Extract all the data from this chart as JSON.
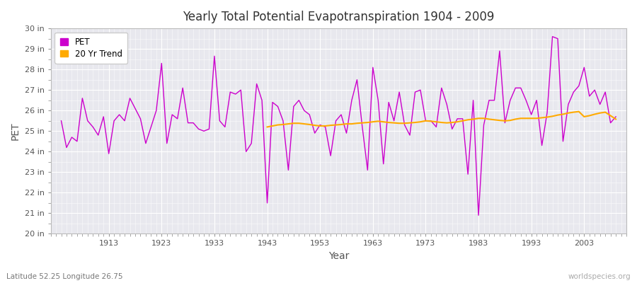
{
  "title": "Yearly Total Potential Evapotranspiration 1904 - 2009",
  "xlabel": "Year",
  "ylabel": "PET",
  "lat_lon_label": "Latitude 52.25 Longitude 26.75",
  "watermark": "worldspecies.org",
  "ylim": [
    20,
    30
  ],
  "ytick_values": [
    20,
    21,
    22,
    23,
    24,
    25,
    26,
    27,
    28,
    29,
    30
  ],
  "ytick_labels": [
    "20 in",
    "21 in",
    "22 in",
    "23 in",
    "24 in",
    "25 in",
    "26 in",
    "27 in",
    "28 in",
    "29 in",
    "30 in"
  ],
  "pet_color": "#cc00cc",
  "trend_color": "#ffaa00",
  "fig_bg_color": "#ffffff",
  "plot_bg_color": "#e8e8ee",
  "grid_color": "#ffffff",
  "text_color": "#555555",
  "pet_years": [
    1904,
    1905,
    1906,
    1907,
    1908,
    1909,
    1910,
    1911,
    1912,
    1913,
    1914,
    1915,
    1916,
    1917,
    1918,
    1919,
    1920,
    1921,
    1922,
    1923,
    1924,
    1925,
    1926,
    1927,
    1928,
    1929,
    1930,
    1931,
    1932,
    1933,
    1934,
    1935,
    1936,
    1937,
    1938,
    1939,
    1940,
    1941,
    1942,
    1943,
    1944,
    1945,
    1946,
    1947,
    1948,
    1949,
    1950,
    1951,
    1952,
    1953,
    1954,
    1955,
    1956,
    1957,
    1958,
    1959,
    1960,
    1961,
    1962,
    1963,
    1964,
    1965,
    1966,
    1967,
    1968,
    1969,
    1970,
    1971,
    1972,
    1973,
    1974,
    1975,
    1976,
    1977,
    1978,
    1979,
    1980,
    1981,
    1982,
    1983,
    1984,
    1985,
    1986,
    1987,
    1988,
    1989,
    1990,
    1991,
    1992,
    1993,
    1994,
    1995,
    1996,
    1997,
    1998,
    1999,
    2000,
    2001,
    2002,
    2003,
    2004,
    2005,
    2006,
    2007,
    2008,
    2009
  ],
  "pet_values": [
    25.5,
    24.2,
    24.7,
    24.5,
    26.6,
    25.5,
    25.2,
    24.8,
    25.7,
    23.9,
    25.5,
    25.8,
    25.5,
    26.6,
    26.1,
    25.6,
    24.4,
    25.2,
    26.0,
    28.3,
    24.4,
    25.8,
    25.6,
    27.1,
    25.4,
    25.4,
    25.1,
    25.0,
    25.1,
    28.65,
    25.5,
    25.2,
    26.9,
    26.8,
    27.0,
    24.0,
    24.4,
    27.3,
    26.5,
    21.5,
    26.4,
    26.2,
    25.5,
    23.1,
    26.2,
    26.5,
    26.0,
    25.8,
    24.9,
    25.3,
    25.2,
    23.8,
    25.5,
    25.8,
    24.9,
    26.5,
    27.5,
    25.2,
    23.1,
    28.1,
    26.5,
    23.4,
    26.4,
    25.5,
    26.9,
    25.3,
    24.8,
    26.9,
    27.0,
    25.5,
    25.5,
    25.2,
    27.1,
    26.3,
    25.1,
    25.6,
    25.6,
    22.9,
    26.5,
    20.9,
    25.3,
    26.5,
    26.5,
    28.9,
    25.4,
    26.5,
    27.1,
    27.1,
    26.5,
    25.8,
    26.5,
    24.3,
    25.9,
    29.6,
    29.5,
    24.5,
    26.3,
    26.9,
    27.2,
    28.1,
    26.7,
    27.0,
    26.3,
    26.9,
    25.4,
    25.7
  ],
  "trend_years": [
    1943,
    1944,
    1945,
    1946,
    1947,
    1948,
    1949,
    1950,
    1951,
    1952,
    1953,
    1954,
    1955,
    1956,
    1957,
    1958,
    1959,
    1960,
    1961,
    1962,
    1963,
    1964,
    1965,
    1966,
    1967,
    1968,
    1969,
    1970,
    1971,
    1972,
    1973,
    1974,
    1975,
    1976,
    1977,
    1978,
    1979,
    1980,
    1981,
    1982,
    1983,
    1984,
    1985,
    1986,
    1987,
    1988,
    1989,
    1990,
    1991,
    1992,
    1993,
    1994,
    1995,
    1996,
    1997,
    1998,
    1999,
    2000,
    2001,
    2002,
    2003,
    2004,
    2005,
    2006,
    2007,
    2008,
    2009
  ],
  "trend_values": [
    25.2,
    25.25,
    25.3,
    25.32,
    25.35,
    25.38,
    25.38,
    25.35,
    25.32,
    25.28,
    25.25,
    25.25,
    25.28,
    25.3,
    25.32,
    25.35,
    25.35,
    25.38,
    25.4,
    25.42,
    25.45,
    25.48,
    25.45,
    25.42,
    25.4,
    25.38,
    25.38,
    25.4,
    25.42,
    25.45,
    25.5,
    25.48,
    25.45,
    25.42,
    25.4,
    25.42,
    25.45,
    25.5,
    25.55,
    25.58,
    25.62,
    25.62,
    25.58,
    25.55,
    25.52,
    25.5,
    25.52,
    25.58,
    25.62,
    25.62,
    25.62,
    25.62,
    25.65,
    25.68,
    25.72,
    25.78,
    25.82,
    25.88,
    25.92,
    25.95,
    25.7,
    25.75,
    25.82,
    25.88,
    25.92,
    25.75,
    25.58
  ]
}
